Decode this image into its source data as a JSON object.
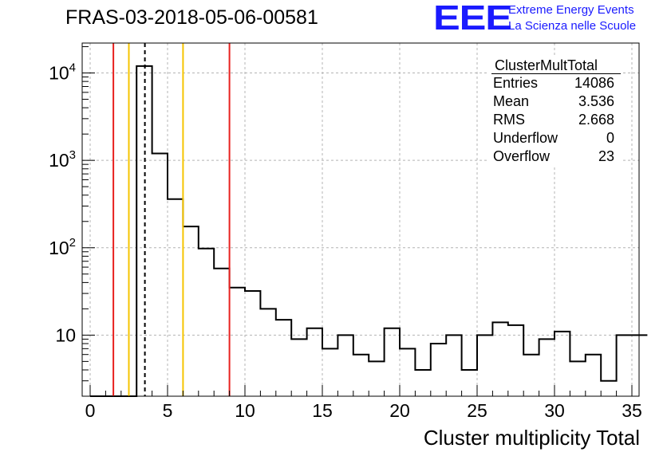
{
  "header": {
    "run_id": "FRAS-03-2018-05-06-00581",
    "logo_mark": "EEE",
    "logo_line1": "Extreme Energy Events",
    "logo_line2": "La Scienza nelle Scuole"
  },
  "stats_box": {
    "title": "ClusterMultTotal",
    "rows": [
      {
        "name": "Entries",
        "value": "14086"
      },
      {
        "name": "Mean",
        "value": "3.536"
      },
      {
        "name": "RMS",
        "value": "2.668"
      },
      {
        "name": "Underflow",
        "value": "0"
      },
      {
        "name": "Overflow",
        "value": "23"
      }
    ]
  },
  "colors": {
    "red_line": "#e8211f",
    "yellow_line": "#f5c400",
    "histogram": "#000000",
    "grid": "#b4b4b4",
    "logo": "#1a1aff"
  },
  "chart_data": {
    "type": "histogram",
    "title": "",
    "xlabel": "Cluster multiplicity Total",
    "ylabel": "",
    "xlim": [
      0,
      35
    ],
    "ylim": [
      2,
      22000
    ],
    "y_scale": "log",
    "grid": true,
    "bin_edges_start": 0,
    "bin_width": 1,
    "values": [
      0,
      0,
      0,
      12000,
      1200,
      360,
      175,
      98,
      58,
      35,
      32,
      20,
      15,
      9,
      12,
      7,
      10,
      6,
      5,
      12,
      7,
      4,
      8,
      10,
      4,
      10,
      14,
      13,
      6,
      9,
      11,
      5,
      6,
      3,
      10,
      10
    ],
    "x_ticks": [
      "0",
      "5",
      "10",
      "15",
      "20",
      "25",
      "30",
      "35"
    ],
    "y_ticks": [
      {
        "value": 10,
        "base": "10",
        "exp": ""
      },
      {
        "value": 100,
        "base": "10",
        "exp": "2"
      },
      {
        "value": 1000,
        "base": "10",
        "exp": "3"
      },
      {
        "value": 10000,
        "base": "10",
        "exp": "4"
      }
    ],
    "vertical_lines": [
      {
        "x": 1.5,
        "color": "red",
        "style": "solid"
      },
      {
        "x": 2.5,
        "color": "yellow",
        "style": "solid"
      },
      {
        "x": 3.536,
        "color": "black",
        "style": "dashed"
      },
      {
        "x": 6.0,
        "color": "yellow",
        "style": "solid"
      },
      {
        "x": 9.0,
        "color": "red",
        "style": "solid"
      }
    ]
  }
}
